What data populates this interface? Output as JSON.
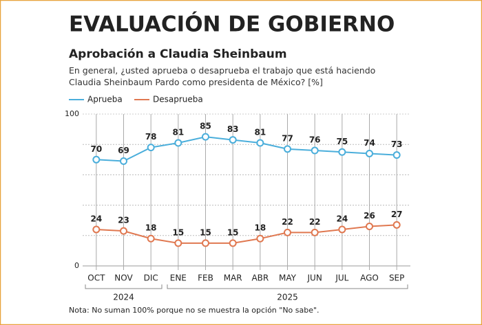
{
  "chart_data": {
    "type": "line",
    "title": "EVALUACIÓN DE GOBIERNO",
    "subtitle": "Aprobación a Claudia Sheinbaum",
    "question": "En general, ¿usted aprueba o desaprueba el trabajo que está haciendo Claudia Sheinbaum Pardo como presidenta de México? [%]",
    "categories": [
      "OCT",
      "NOV",
      "DIC",
      "ENE",
      "FEB",
      "MAR",
      "ABR",
      "MAY",
      "JUN",
      "JUL",
      "AGO",
      "SEP"
    ],
    "year_groups": [
      {
        "label": "2024",
        "count": 3
      },
      {
        "label": "2025",
        "count": 9
      }
    ],
    "series": [
      {
        "name": "Aprueba",
        "color": "#4aaedb",
        "values": [
          70,
          69,
          78,
          81,
          85,
          83,
          81,
          77,
          76,
          75,
          74,
          73
        ]
      },
      {
        "name": "Desaprueba",
        "color": "#e07850",
        "values": [
          24,
          23,
          18,
          15,
          15,
          15,
          18,
          22,
          22,
          24,
          26,
          27
        ]
      }
    ],
    "ylim": [
      0,
      100
    ],
    "yticks": [
      0,
      100
    ],
    "grid_lines": [
      20,
      40,
      60,
      80
    ],
    "note": "Nota: No suman 100% porque no se muestra la opción \"No sabe\"."
  }
}
